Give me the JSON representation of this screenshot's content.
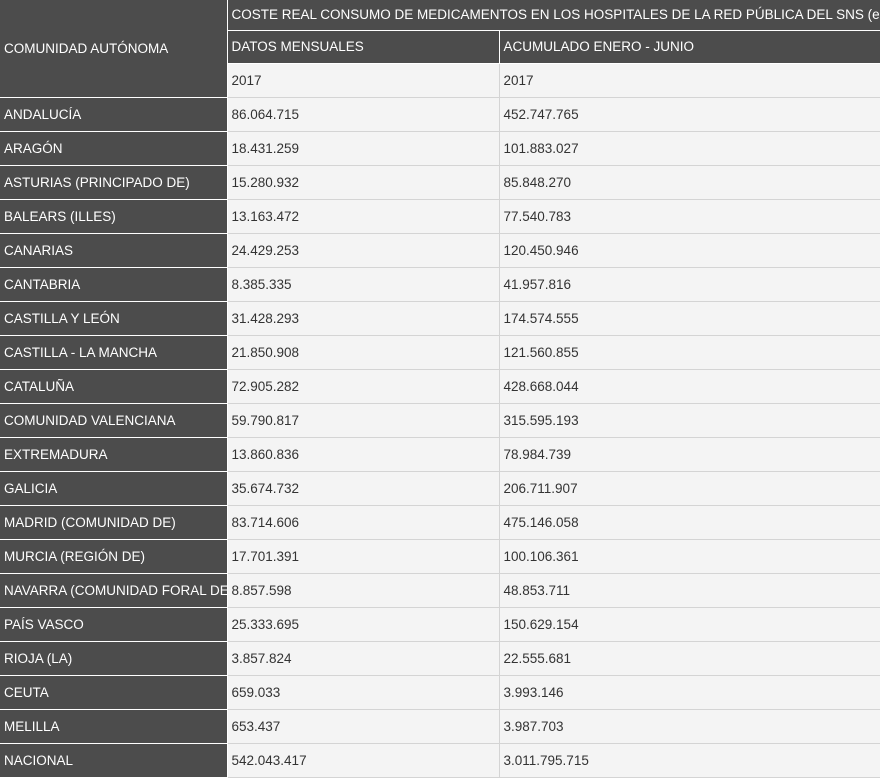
{
  "table": {
    "region_header": "COMUNIDAD AUTÓNOMA",
    "main_title": "COSTE REAL CONSUMO DE MEDICAMENTOS EN LOS HOSPITALES DE LA RED PÚBLICA DEL SNS (en euros)",
    "col_monthly": "DATOS MENSUALES",
    "col_cumulative": "ACUMULADO ENERO - JUNIO",
    "year_monthly": "2017",
    "year_cumulative": "2017",
    "rows": [
      {
        "region": "ANDALUCÍA",
        "monthly": "86.064.715",
        "cumulative": "452.747.765"
      },
      {
        "region": "ARAGÓN",
        "monthly": "18.431.259",
        "cumulative": "101.883.027"
      },
      {
        "region": "ASTURIAS (PRINCIPADO DE)",
        "monthly": "15.280.932",
        "cumulative": "85.848.270"
      },
      {
        "region": "BALEARS (ILLES)",
        "monthly": "13.163.472",
        "cumulative": "77.540.783"
      },
      {
        "region": "CANARIAS",
        "monthly": "24.429.253",
        "cumulative": "120.450.946"
      },
      {
        "region": "CANTABRIA",
        "monthly": "8.385.335",
        "cumulative": "41.957.816"
      },
      {
        "region": "CASTILLA Y LEÓN",
        "monthly": "31.428.293",
        "cumulative": "174.574.555"
      },
      {
        "region": "CASTILLA - LA MANCHA",
        "monthly": "21.850.908",
        "cumulative": "121.560.855"
      },
      {
        "region": "CATALUÑA",
        "monthly": "72.905.282",
        "cumulative": "428.668.044"
      },
      {
        "region": "COMUNIDAD VALENCIANA",
        "monthly": "59.790.817",
        "cumulative": "315.595.193"
      },
      {
        "region": "EXTREMADURA",
        "monthly": "13.860.836",
        "cumulative": "78.984.739"
      },
      {
        "region": "GALICIA",
        "monthly": "35.674.732",
        "cumulative": "206.711.907"
      },
      {
        "region": "MADRID (COMUNIDAD DE)",
        "monthly": "83.714.606",
        "cumulative": "475.146.058"
      },
      {
        "region": "MURCIA (REGIÓN DE)",
        "monthly": "17.701.391",
        "cumulative": "100.106.361"
      },
      {
        "region": "NAVARRA (COMUNIDAD FORAL DE)",
        "monthly": "8.857.598",
        "cumulative": "48.853.711"
      },
      {
        "region": "PAÍS VASCO",
        "monthly": "25.333.695",
        "cumulative": "150.629.154"
      },
      {
        "region": "RIOJA (LA)",
        "monthly": "3.857.824",
        "cumulative": "22.555.681"
      },
      {
        "region": "CEUTA",
        "monthly": "659.033",
        "cumulative": "3.993.146"
      },
      {
        "region": "MELILLA",
        "monthly": "653.437",
        "cumulative": "3.987.703"
      },
      {
        "region": "NACIONAL",
        "monthly": "542.043.417",
        "cumulative": "3.011.795.715"
      }
    ]
  }
}
